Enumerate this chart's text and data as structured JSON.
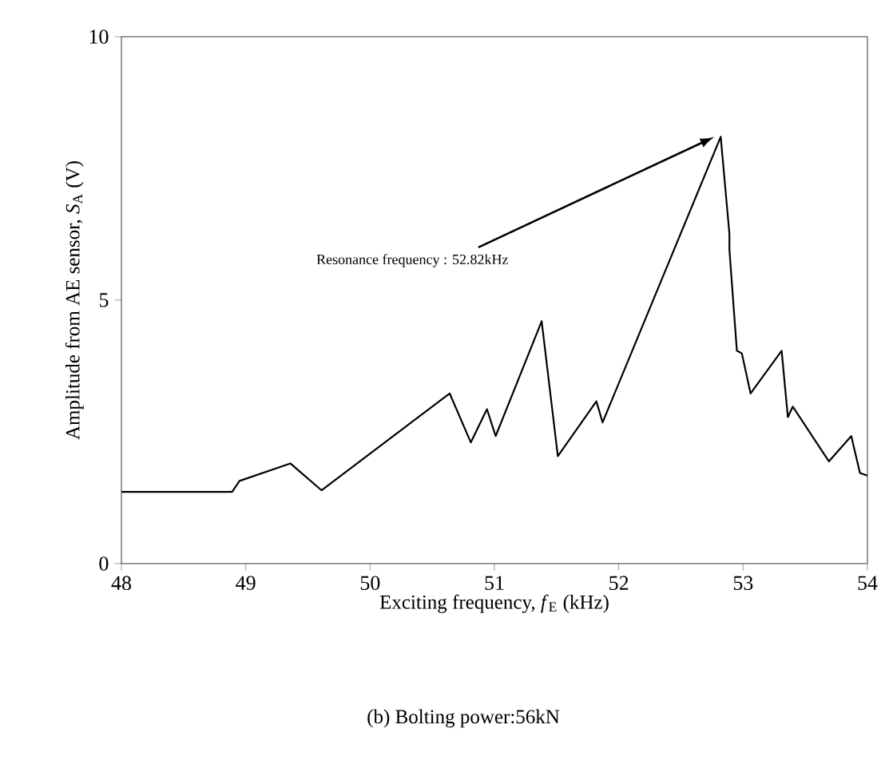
{
  "chart_data": {
    "type": "line",
    "title": "(b) Bolting power:56kN",
    "xlabel": "Exciting frequency, *f*$_{E}$ (kHz)",
    "ylabel": "Amplitude from AE sensor, *S*$_{A}$ (V)",
    "x": [
      48,
      48.89,
      48.95,
      49.36,
      49.61,
      50.64,
      50.81,
      50.94,
      51.01,
      51.38,
      51.51,
      51.82,
      51.87,
      52.82,
      52.89,
      52.89,
      52.95,
      52.99,
      53.06,
      53.31,
      53.36,
      53.4,
      53.69,
      53.87,
      53.94,
      54
    ],
    "series": [
      {
        "color": "#000000",
        "values": [
          1.36,
          1.36,
          1.57,
          1.9,
          1.39,
          3.23,
          2.3,
          2.93,
          2.42,
          4.6,
          2.04,
          3.08,
          2.68,
          8.1,
          6.26,
          5.96,
          4.04,
          3.99,
          3.23,
          4.04,
          2.78,
          2.98,
          1.94,
          2.42,
          1.72,
          1.67
        ]
      }
    ],
    "xlim": [
      48,
      54
    ],
    "ylim": [
      0,
      10
    ],
    "xticks": [
      48,
      49,
      50,
      51,
      52,
      53,
      54
    ],
    "yticks": [
      0,
      5,
      10
    ],
    "annotations": [
      "Resonance frequency : 52.82kHz"
    ],
    "grid": false,
    "marker": "none",
    "line_style": "solid"
  }
}
